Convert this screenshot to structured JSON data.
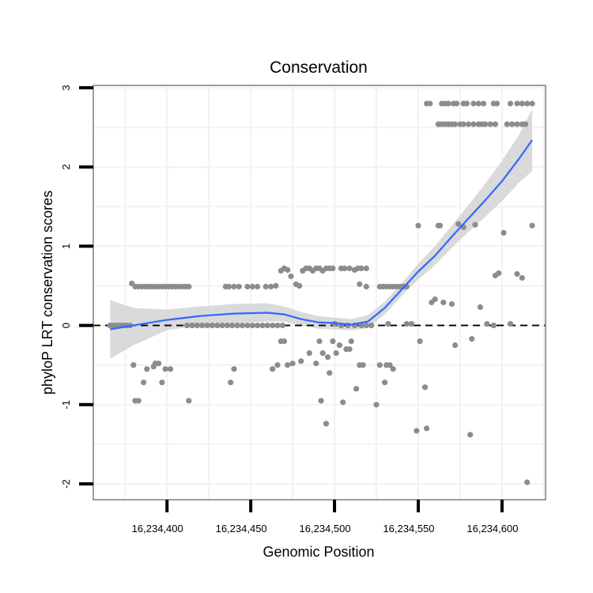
{
  "chart_data": {
    "type": "scatter",
    "title": "Conservation",
    "xlabel": "Genomic Position",
    "ylabel": "phyloP LRT conservation scores",
    "xlim": [
      16234356,
      16234626
    ],
    "ylim": [
      -2.2,
      3.03
    ],
    "x_ticks": [
      {
        "value": 16234400,
        "label": "16,234,400"
      },
      {
        "value": 16234450,
        "label": "16,234,450"
      },
      {
        "value": 16234500,
        "label": "16,234,500"
      },
      {
        "value": 16234550,
        "label": "16,234,550"
      },
      {
        "value": 16234600,
        "label": "16,234,600"
      }
    ],
    "y_ticks": [
      {
        "value": -2,
        "label": "-2"
      },
      {
        "value": -1,
        "label": "-1"
      },
      {
        "value": 0,
        "label": "0"
      },
      {
        "value": 1,
        "label": "1"
      },
      {
        "value": 2,
        "label": "2"
      },
      {
        "value": 3,
        "label": "3"
      }
    ],
    "reference_line": {
      "y": 0,
      "style": "dashed"
    },
    "grid": true,
    "colors": {
      "points": "#8c8c8c",
      "smooth": "#3366ff",
      "ribbon": "#d6d6d6",
      "border": "#7f7f7f",
      "grid": "#f2f2f2"
    },
    "smooth": {
      "x": [
        16234366,
        16234380,
        16234400,
        16234420,
        16234440,
        16234460,
        16234470,
        16234480,
        16234490,
        16234500,
        16234510,
        16234520,
        16234530,
        16234540,
        16234550,
        16234560,
        16234570,
        16234580,
        16234590,
        16234600,
        16234610,
        16234618
      ],
      "y": [
        -0.05,
        0.0,
        0.07,
        0.12,
        0.15,
        0.16,
        0.14,
        0.08,
        0.04,
        0.03,
        0.01,
        0.05,
        0.22,
        0.45,
        0.68,
        0.88,
        1.12,
        1.35,
        1.58,
        1.82,
        2.1,
        2.34
      ],
      "lower": [
        -0.42,
        -0.25,
        -0.06,
        0.0,
        0.03,
        0.05,
        0.05,
        0.0,
        -0.04,
        -0.05,
        -0.06,
        -0.03,
        0.14,
        0.37,
        0.58,
        0.76,
        0.98,
        1.18,
        1.37,
        1.57,
        1.8,
        1.95
      ],
      "upper": [
        0.32,
        0.22,
        0.2,
        0.24,
        0.27,
        0.28,
        0.24,
        0.17,
        0.12,
        0.1,
        0.08,
        0.13,
        0.3,
        0.53,
        0.78,
        1.0,
        1.26,
        1.52,
        1.79,
        2.08,
        2.4,
        2.73
      ]
    },
    "points": [
      {
        "x": 16234366,
        "y": 0.0
      },
      {
        "x": 16234368,
        "y": 0.0
      },
      {
        "x": 16234370,
        "y": 0.0
      },
      {
        "x": 16234372,
        "y": 0.0
      },
      {
        "x": 16234374,
        "y": 0.0
      },
      {
        "x": 16234376,
        "y": 0.0
      },
      {
        "x": 16234378,
        "y": 0.0
      },
      {
        "x": 16234379,
        "y": 0.53
      },
      {
        "x": 16234381,
        "y": 0.49
      },
      {
        "x": 16234383,
        "y": 0.49
      },
      {
        "x": 16234385,
        "y": 0.49
      },
      {
        "x": 16234387,
        "y": 0.49
      },
      {
        "x": 16234389,
        "y": 0.49
      },
      {
        "x": 16234391,
        "y": 0.49
      },
      {
        "x": 16234393,
        "y": 0.49
      },
      {
        "x": 16234395,
        "y": 0.49
      },
      {
        "x": 16234397,
        "y": 0.49
      },
      {
        "x": 16234399,
        "y": 0.49
      },
      {
        "x": 16234401,
        "y": 0.49
      },
      {
        "x": 16234403,
        "y": 0.49
      },
      {
        "x": 16234405,
        "y": 0.49
      },
      {
        "x": 16234407,
        "y": 0.49
      },
      {
        "x": 16234409,
        "y": 0.49
      },
      {
        "x": 16234411,
        "y": 0.49
      },
      {
        "x": 16234413,
        "y": 0.49
      },
      {
        "x": 16234380,
        "y": -0.5
      },
      {
        "x": 16234381,
        "y": -0.95
      },
      {
        "x": 16234383,
        "y": -0.95
      },
      {
        "x": 16234386,
        "y": -0.72
      },
      {
        "x": 16234388,
        "y": -0.55
      },
      {
        "x": 16234392,
        "y": -0.52
      },
      {
        "x": 16234393,
        "y": -0.48
      },
      {
        "x": 16234395,
        "y": -0.48
      },
      {
        "x": 16234397,
        "y": -0.72
      },
      {
        "x": 16234399,
        "y": -0.55
      },
      {
        "x": 16234402,
        "y": -0.55
      },
      {
        "x": 16234413,
        "y": -0.95
      },
      {
        "x": 16234412,
        "y": 0.0
      },
      {
        "x": 16234415,
        "y": 0.0
      },
      {
        "x": 16234418,
        "y": 0.0
      },
      {
        "x": 16234421,
        "y": 0.0
      },
      {
        "x": 16234424,
        "y": 0.0
      },
      {
        "x": 16234427,
        "y": 0.0
      },
      {
        "x": 16234430,
        "y": 0.0
      },
      {
        "x": 16234433,
        "y": 0.0
      },
      {
        "x": 16234436,
        "y": 0.0
      },
      {
        "x": 16234439,
        "y": 0.0
      },
      {
        "x": 16234442,
        "y": 0.0
      },
      {
        "x": 16234445,
        "y": 0.0
      },
      {
        "x": 16234448,
        "y": 0.0
      },
      {
        "x": 16234451,
        "y": 0.0
      },
      {
        "x": 16234454,
        "y": 0.0
      },
      {
        "x": 16234457,
        "y": 0.0
      },
      {
        "x": 16234460,
        "y": 0.0
      },
      {
        "x": 16234463,
        "y": 0.0
      },
      {
        "x": 16234466,
        "y": 0.0
      },
      {
        "x": 16234469,
        "y": 0.0
      },
      {
        "x": 16234435,
        "y": 0.49
      },
      {
        "x": 16234437,
        "y": 0.49
      },
      {
        "x": 16234440,
        "y": 0.49
      },
      {
        "x": 16234443,
        "y": 0.49
      },
      {
        "x": 16234448,
        "y": 0.49
      },
      {
        "x": 16234451,
        "y": 0.49
      },
      {
        "x": 16234454,
        "y": 0.49
      },
      {
        "x": 16234459,
        "y": 0.49
      },
      {
        "x": 16234462,
        "y": 0.49
      },
      {
        "x": 16234465,
        "y": 0.5
      },
      {
        "x": 16234438,
        "y": -0.72
      },
      {
        "x": 16234440,
        "y": -0.55
      },
      {
        "x": 16234463,
        "y": -0.55
      },
      {
        "x": 16234466,
        "y": -0.5
      },
      {
        "x": 16234468,
        "y": -0.2
      },
      {
        "x": 16234470,
        "y": -0.2
      },
      {
        "x": 16234468,
        "y": 0.69
      },
      {
        "x": 16234470,
        "y": 0.72
      },
      {
        "x": 16234472,
        "y": 0.7
      },
      {
        "x": 16234474,
        "y": 0.62
      },
      {
        "x": 16234477,
        "y": 0.52
      },
      {
        "x": 16234479,
        "y": 0.5
      },
      {
        "x": 16234481,
        "y": 0.69
      },
      {
        "x": 16234483,
        "y": 0.72
      },
      {
        "x": 16234485,
        "y": 0.72
      },
      {
        "x": 16234487,
        "y": 0.69
      },
      {
        "x": 16234489,
        "y": 0.72
      },
      {
        "x": 16234491,
        "y": 0.72
      },
      {
        "x": 16234493,
        "y": 0.69
      },
      {
        "x": 16234495,
        "y": 0.72
      },
      {
        "x": 16234497,
        "y": 0.72
      },
      {
        "x": 16234499,
        "y": 0.72
      },
      {
        "x": 16234504,
        "y": 0.72
      },
      {
        "x": 16234506,
        "y": 0.72
      },
      {
        "x": 16234509,
        "y": 0.72
      },
      {
        "x": 16234512,
        "y": 0.7
      },
      {
        "x": 16234514,
        "y": 0.72
      },
      {
        "x": 16234516,
        "y": 0.72
      },
      {
        "x": 16234519,
        "y": 0.72
      },
      {
        "x": 16234472,
        "y": -0.5
      },
      {
        "x": 16234475,
        "y": -0.48
      },
      {
        "x": 16234480,
        "y": -0.45
      },
      {
        "x": 16234485,
        "y": -0.35
      },
      {
        "x": 16234489,
        "y": -0.48
      },
      {
        "x": 16234491,
        "y": -0.2
      },
      {
        "x": 16234492,
        "y": -0.95
      },
      {
        "x": 16234493,
        "y": -0.35
      },
      {
        "x": 16234495,
        "y": -1.24
      },
      {
        "x": 16234496,
        "y": -0.4
      },
      {
        "x": 16234497,
        "y": -0.6
      },
      {
        "x": 16234499,
        "y": -0.2
      },
      {
        "x": 16234501,
        "y": -0.35
      },
      {
        "x": 16234503,
        "y": -0.25
      },
      {
        "x": 16234505,
        "y": -0.97
      },
      {
        "x": 16234507,
        "y": -0.3
      },
      {
        "x": 16234509,
        "y": -0.3
      },
      {
        "x": 16234510,
        "y": -0.2
      },
      {
        "x": 16234513,
        "y": -0.8
      },
      {
        "x": 16234515,
        "y": -0.5
      },
      {
        "x": 16234517,
        "y": -0.5
      },
      {
        "x": 16234525,
        "y": -1.0
      },
      {
        "x": 16234527,
        "y": -0.5
      },
      {
        "x": 16234530,
        "y": -0.72
      },
      {
        "x": 16234531,
        "y": -0.5
      },
      {
        "x": 16234533,
        "y": -0.5
      },
      {
        "x": 16234535,
        "y": -0.55
      },
      {
        "x": 16234500,
        "y": 0.02
      },
      {
        "x": 16234504,
        "y": 0.0
      },
      {
        "x": 16234508,
        "y": 0.0
      },
      {
        "x": 16234512,
        "y": 0.0
      },
      {
        "x": 16234516,
        "y": 0.0
      },
      {
        "x": 16234519,
        "y": 0.0
      },
      {
        "x": 16234522,
        "y": 0.0
      },
      {
        "x": 16234532,
        "y": 0.02
      },
      {
        "x": 16234543,
        "y": 0.02
      },
      {
        "x": 16234546,
        "y": 0.02
      },
      {
        "x": 16234515,
        "y": 0.52
      },
      {
        "x": 16234519,
        "y": 0.49
      },
      {
        "x": 16234527,
        "y": 0.49
      },
      {
        "x": 16234529,
        "y": 0.49
      },
      {
        "x": 16234531,
        "y": 0.49
      },
      {
        "x": 16234533,
        "y": 0.49
      },
      {
        "x": 16234535,
        "y": 0.49
      },
      {
        "x": 16234537,
        "y": 0.49
      },
      {
        "x": 16234539,
        "y": 0.49
      },
      {
        "x": 16234541,
        "y": 0.49
      },
      {
        "x": 16234543,
        "y": 0.49
      },
      {
        "x": 16234550,
        "y": 1.26
      },
      {
        "x": 16234549,
        "y": -1.33
      },
      {
        "x": 16234551,
        "y": -0.2
      },
      {
        "x": 16234554,
        "y": -0.78
      },
      {
        "x": 16234555,
        "y": -1.3
      },
      {
        "x": 16234558,
        "y": 0.29
      },
      {
        "x": 16234560,
        "y": 0.33
      },
      {
        "x": 16234562,
        "y": 1.26
      },
      {
        "x": 16234563,
        "y": 1.26
      },
      {
        "x": 16234565,
        "y": 0.29
      },
      {
        "x": 16234570,
        "y": 0.27
      },
      {
        "x": 16234572,
        "y": -0.25
      },
      {
        "x": 16234574,
        "y": 1.28
      },
      {
        "x": 16234577,
        "y": 1.24
      },
      {
        "x": 16234581,
        "y": -1.38
      },
      {
        "x": 16234582,
        "y": -0.17
      },
      {
        "x": 16234584,
        "y": 1.27
      },
      {
        "x": 16234587,
        "y": 0.23
      },
      {
        "x": 16234591,
        "y": 0.02
      },
      {
        "x": 16234595,
        "y": 0.0
      },
      {
        "x": 16234596,
        "y": 0.63
      },
      {
        "x": 16234598,
        "y": 0.66
      },
      {
        "x": 16234601,
        "y": 1.17
      },
      {
        "x": 16234605,
        "y": 0.02
      },
      {
        "x": 16234609,
        "y": 0.65
      },
      {
        "x": 16234612,
        "y": 0.6
      },
      {
        "x": 16234615,
        "y": -1.98
      },
      {
        "x": 16234618,
        "y": 1.26
      },
      {
        "x": 16234555,
        "y": 2.8
      },
      {
        "x": 16234557,
        "y": 2.8
      },
      {
        "x": 16234564,
        "y": 2.8
      },
      {
        "x": 16234566,
        "y": 2.8
      },
      {
        "x": 16234568,
        "y": 2.8
      },
      {
        "x": 16234571,
        "y": 2.8
      },
      {
        "x": 16234573,
        "y": 2.8
      },
      {
        "x": 16234577,
        "y": 2.8
      },
      {
        "x": 16234579,
        "y": 2.8
      },
      {
        "x": 16234583,
        "y": 2.8
      },
      {
        "x": 16234586,
        "y": 2.8
      },
      {
        "x": 16234589,
        "y": 2.8
      },
      {
        "x": 16234595,
        "y": 2.8
      },
      {
        "x": 16234597,
        "y": 2.8
      },
      {
        "x": 16234605,
        "y": 2.8
      },
      {
        "x": 16234609,
        "y": 2.8
      },
      {
        "x": 16234612,
        "y": 2.8
      },
      {
        "x": 16234615,
        "y": 2.8
      },
      {
        "x": 16234618,
        "y": 2.8
      },
      {
        "x": 16234562,
        "y": 2.54
      },
      {
        "x": 16234564,
        "y": 2.54
      },
      {
        "x": 16234566,
        "y": 2.54
      },
      {
        "x": 16234568,
        "y": 2.54
      },
      {
        "x": 16234570,
        "y": 2.54
      },
      {
        "x": 16234572,
        "y": 2.54
      },
      {
        "x": 16234575,
        "y": 2.54
      },
      {
        "x": 16234577,
        "y": 2.54
      },
      {
        "x": 16234580,
        "y": 2.54
      },
      {
        "x": 16234583,
        "y": 2.54
      },
      {
        "x": 16234586,
        "y": 2.54
      },
      {
        "x": 16234588,
        "y": 2.54
      },
      {
        "x": 16234590,
        "y": 2.54
      },
      {
        "x": 16234593,
        "y": 2.54
      },
      {
        "x": 16234596,
        "y": 2.54
      },
      {
        "x": 16234603,
        "y": 2.54
      },
      {
        "x": 16234606,
        "y": 2.54
      },
      {
        "x": 16234609,
        "y": 2.54
      },
      {
        "x": 16234612,
        "y": 2.54
      },
      {
        "x": 16234614,
        "y": 2.54
      }
    ]
  }
}
